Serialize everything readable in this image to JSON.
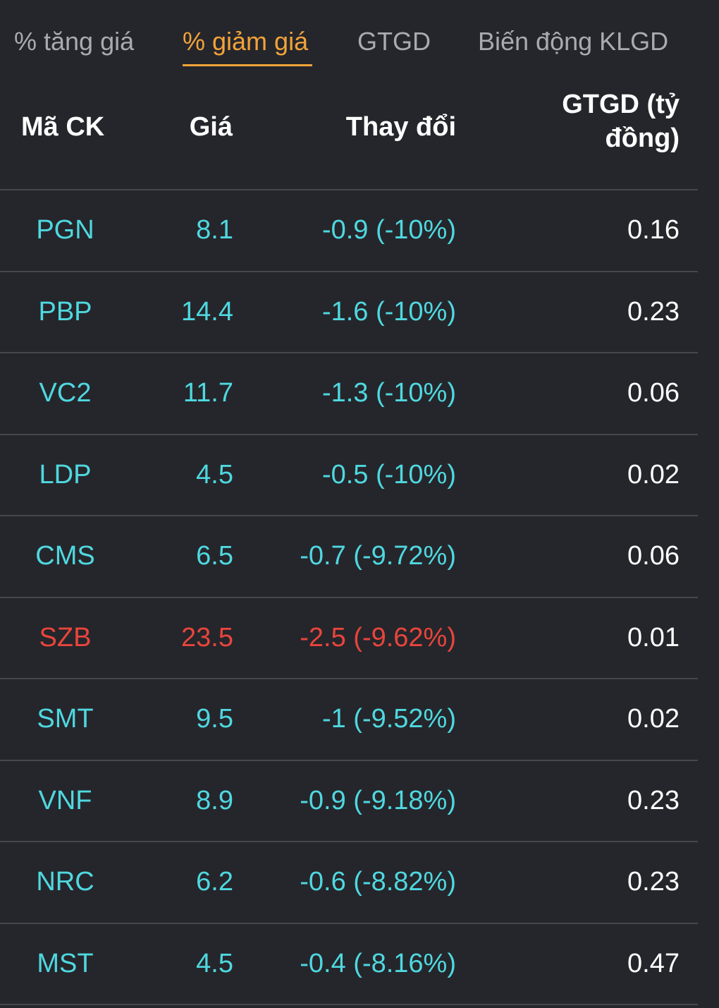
{
  "tabs": [
    {
      "label": "% tăng giá",
      "active": false
    },
    {
      "label": "% giảm giá",
      "active": true
    },
    {
      "label": "GTGD",
      "active": false
    },
    {
      "label": "Biến động KLGD",
      "active": false
    }
  ],
  "table": {
    "headers": {
      "code": "Mã CK",
      "price": "Giá",
      "change": "Thay đổi",
      "value_line1": "GTGD (tỷ",
      "value_line2": "đồng)"
    },
    "rows": [
      {
        "code": "PGN",
        "price": "8.1",
        "change": "-0.9 (-10%)",
        "value": "0.16",
        "color": "#4fd8e0"
      },
      {
        "code": "PBP",
        "price": "14.4",
        "change": "-1.6 (-10%)",
        "value": "0.23",
        "color": "#4fd8e0"
      },
      {
        "code": "VC2",
        "price": "11.7",
        "change": "-1.3 (-10%)",
        "value": "0.06",
        "color": "#4fd8e0"
      },
      {
        "code": "LDP",
        "price": "4.5",
        "change": "-0.5 (-10%)",
        "value": "0.02",
        "color": "#4fd8e0"
      },
      {
        "code": "CMS",
        "price": "6.5",
        "change": "-0.7 (-9.72%)",
        "value": "0.06",
        "color": "#4fd8e0"
      },
      {
        "code": "SZB",
        "price": "23.5",
        "change": "-2.5 (-9.62%)",
        "value": "0.01",
        "color": "#e8453c"
      },
      {
        "code": "SMT",
        "price": "9.5",
        "change": "-1 (-9.52%)",
        "value": "0.02",
        "color": "#4fd8e0"
      },
      {
        "code": "VNF",
        "price": "8.9",
        "change": "-0.9 (-9.18%)",
        "value": "0.23",
        "color": "#4fd8e0"
      },
      {
        "code": "NRC",
        "price": "6.2",
        "change": "-0.6 (-8.82%)",
        "value": "0.23",
        "color": "#4fd8e0"
      },
      {
        "code": "MST",
        "price": "4.5",
        "change": "-0.4 (-8.16%)",
        "value": "0.47",
        "color": "#4fd8e0"
      }
    ]
  },
  "colors": {
    "background": "#25262b",
    "accent": "#f2a33a",
    "floor": "#4fd8e0",
    "down": "#e8453c",
    "divider": "#45474d"
  }
}
